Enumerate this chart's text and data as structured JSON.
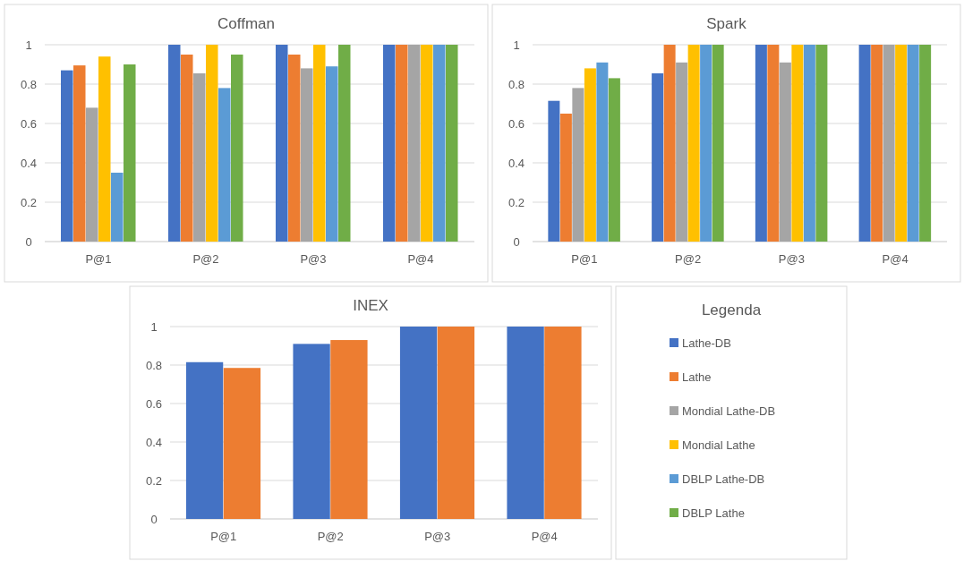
{
  "chart_data": [
    {
      "type": "bar",
      "title": "Coffman",
      "categories": [
        "P@1",
        "P@2",
        "P@3",
        "P@4"
      ],
      "ylim": [
        0,
        1
      ],
      "yticks": [
        0,
        0.2,
        0.4,
        0.6,
        0.8,
        1
      ],
      "grid": "y",
      "series": [
        {
          "color": "#4472c4",
          "values": [
            0.87,
            1,
            1,
            1
          ]
        },
        {
          "color": "#ed7d31",
          "values": [
            0.895,
            0.95,
            0.95,
            1
          ]
        },
        {
          "color": "#a5a5a5",
          "values": [
            0.68,
            0.855,
            0.88,
            1
          ]
        },
        {
          "color": "#ffc000",
          "values": [
            0.94,
            1,
            1,
            1
          ]
        },
        {
          "color": "#5b9bd5",
          "values": [
            0.35,
            0.78,
            0.89,
            1
          ]
        },
        {
          "color": "#70ad47",
          "values": [
            0.9,
            0.95,
            1,
            1
          ]
        }
      ]
    },
    {
      "type": "bar",
      "title": "Spark",
      "categories": [
        "P@1",
        "P@2",
        "P@3",
        "P@4"
      ],
      "ylim": [
        0,
        1
      ],
      "yticks": [
        0,
        0.2,
        0.4,
        0.6,
        0.8,
        1
      ],
      "grid": "y",
      "series": [
        {
          "color": "#4472c4",
          "values": [
            0.715,
            0.855,
            1,
            1
          ]
        },
        {
          "color": "#ed7d31",
          "values": [
            0.65,
            1,
            1,
            1
          ]
        },
        {
          "color": "#a5a5a5",
          "values": [
            0.78,
            0.91,
            0.91,
            1
          ]
        },
        {
          "color": "#ffc000",
          "values": [
            0.88,
            1,
            1,
            1
          ]
        },
        {
          "color": "#5b9bd5",
          "values": [
            0.91,
            1,
            1,
            1
          ]
        },
        {
          "color": "#70ad47",
          "values": [
            0.83,
            1,
            1,
            1
          ]
        }
      ]
    },
    {
      "type": "bar",
      "title": "INEX",
      "categories": [
        "P@1",
        "P@2",
        "P@3",
        "P@4"
      ],
      "ylim": [
        0,
        1
      ],
      "yticks": [
        0,
        0.2,
        0.4,
        0.6,
        0.8,
        1
      ],
      "grid": "y",
      "legend": "right",
      "legend_title": "Legenda",
      "series": [
        {
          "name": "Lathe-DB",
          "color": "#4472c4",
          "values": [
            0.815,
            0.91,
            1,
            1
          ]
        },
        {
          "name": "Lathe",
          "color": "#ed7d31",
          "values": [
            0.785,
            0.93,
            1,
            1
          ]
        },
        {
          "name": "Mondial Lathe-DB",
          "color": "#a5a5a5",
          "values": [
            null,
            null,
            null,
            null
          ]
        },
        {
          "name": "Mondial Lathe",
          "color": "#ffc000",
          "values": [
            null,
            null,
            null,
            null
          ]
        },
        {
          "name": "DBLP Lathe-DB",
          "color": "#5b9bd5",
          "values": [
            null,
            null,
            null,
            null
          ]
        },
        {
          "name": "DBLP Lathe",
          "color": "#70ad47",
          "values": [
            null,
            null,
            null,
            null
          ]
        }
      ]
    }
  ]
}
